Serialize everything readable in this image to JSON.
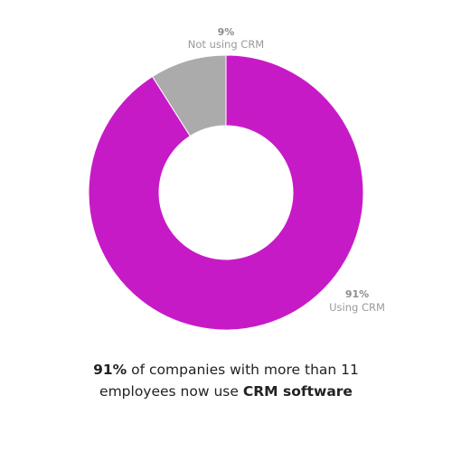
{
  "chart_data": {
    "type": "pie",
    "donut": true,
    "slices": [
      {
        "label": "Using CRM",
        "pct_label": "91%",
        "value": 91,
        "color": "#c71ac7"
      },
      {
        "label": "Not using CRM",
        "pct_label": "9%",
        "value": 9,
        "color": "#ababab"
      }
    ]
  },
  "caption": {
    "bold_lead": "91%",
    "line1_rest": " of companies with more than 11",
    "line2_lead": "employees now use ",
    "bold_tail": "CRM software"
  }
}
